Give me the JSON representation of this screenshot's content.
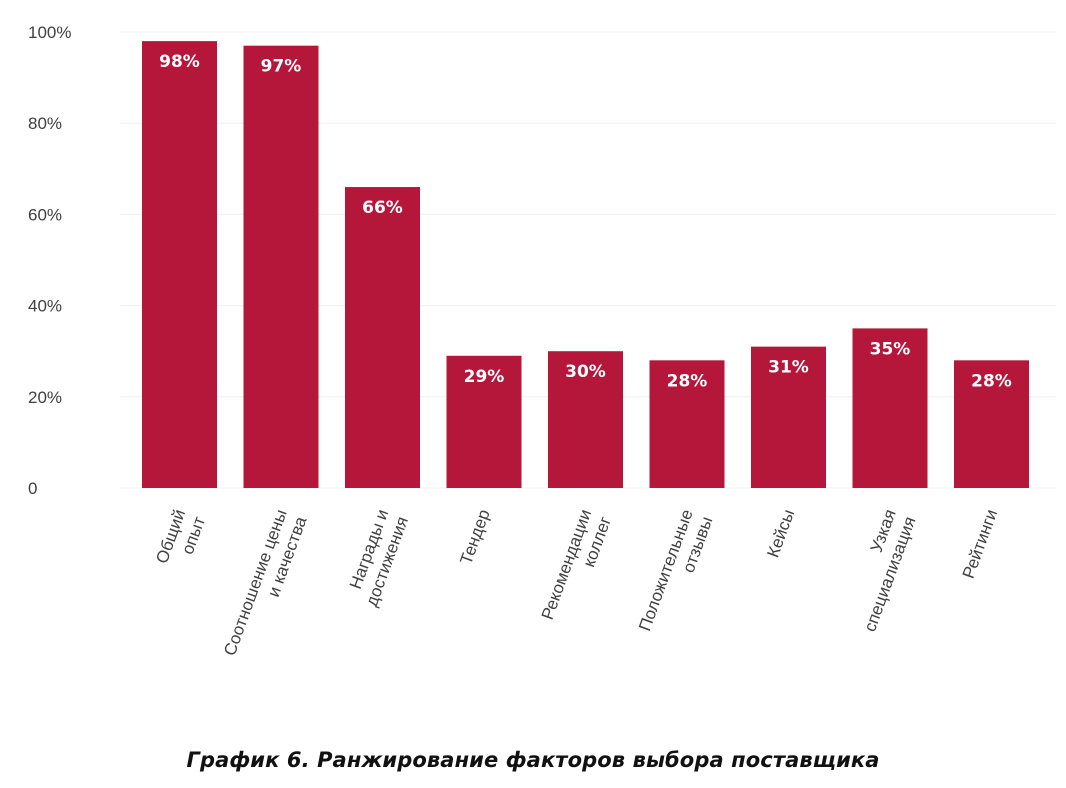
{
  "chart_data": {
    "type": "bar",
    "categories": [
      [
        "Общий",
        "опыт"
      ],
      [
        "Соотношение цены",
        "и качества"
      ],
      [
        "Награды и",
        "достижения"
      ],
      [
        "Тендер"
      ],
      [
        "Рекомендации",
        "коллег"
      ],
      [
        "Положительные",
        "отзывы"
      ],
      [
        "Кейсы"
      ],
      [
        "Узкая",
        "специализация"
      ],
      [
        "Рейтинги"
      ]
    ],
    "values": [
      98,
      97,
      66,
      29,
      30,
      28,
      31,
      35,
      28
    ],
    "data_labels": [
      "98%",
      "97%",
      "66%",
      "29%",
      "30%",
      "28%",
      "31%",
      "35%",
      "28%"
    ],
    "yticks": [
      {
        "value": 0,
        "label": "0"
      },
      {
        "value": 20,
        "label": "20%"
      },
      {
        "value": 40,
        "label": "40%"
      },
      {
        "value": 60,
        "label": "60%"
      },
      {
        "value": 80,
        "label": "80%"
      },
      {
        "value": 100,
        "label": "100%"
      }
    ],
    "ylim": [
      0,
      100
    ],
    "grid": true,
    "bar_color": "#b5173a",
    "caption": "График 6. Ранжирование факторов выбора поставщика"
  }
}
